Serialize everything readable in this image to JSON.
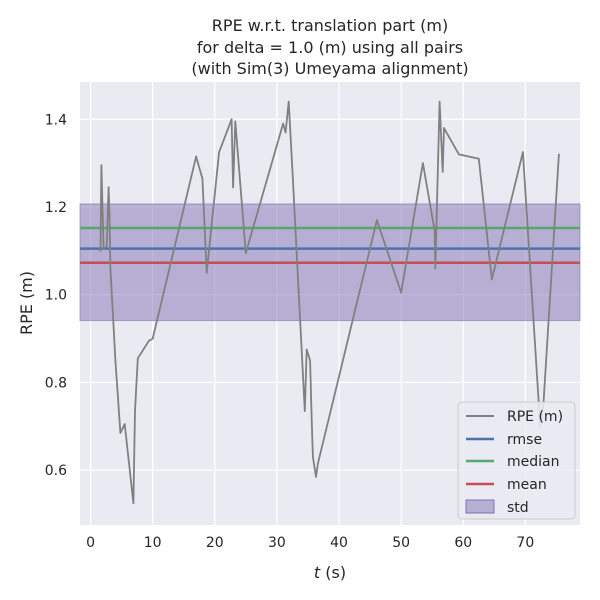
{
  "chart_data": {
    "type": "line",
    "title_lines": [
      "RPE w.r.t. translation part (m)",
      "for delta = 1.0 (m) using all pairs",
      "(with Sim(3) Umeyama alignment)"
    ],
    "xlabel": {
      "italic": "t",
      "rest": " (s)"
    },
    "ylabel": "RPE (m)",
    "xlim": [
      -1.7,
      78.8
    ],
    "ylim": [
      0.475,
      1.485
    ],
    "xticks": [
      0,
      10,
      20,
      30,
      40,
      50,
      60,
      70
    ],
    "yticks": [
      0.6,
      0.8,
      1.0,
      1.2,
      1.4
    ],
    "ytick_labels": [
      "0.6",
      "0.8",
      "1.0",
      "1.2",
      "1.4"
    ],
    "grid": true,
    "legend_position": "lower-right",
    "legend": [
      "RPE (m)",
      "rmse",
      "median",
      "mean",
      "std"
    ],
    "series": {
      "name": "RPE (m)",
      "color": "#808080",
      "x": [
        1.6,
        1.75,
        2.1,
        2.6,
        2.9,
        3.05,
        3.2,
        4.0,
        4.8,
        5.5,
        6.9,
        7.15,
        7.6,
        9.4,
        10.0,
        17.0,
        18.0,
        18.7,
        20.7,
        22.7,
        22.95,
        23.3,
        25.0,
        31.0,
        31.4,
        31.9,
        32.5,
        34.5,
        34.8,
        35.35,
        35.6,
        35.8,
        36.3,
        36.6,
        46.1,
        50.0,
        53.5,
        55.4,
        55.5,
        56.2,
        56.7,
        56.9,
        59.3,
        62.5,
        64.6,
        69.6,
        72.4,
        72.9,
        75.4
      ],
      "y": [
        1.1,
        1.295,
        1.105,
        1.11,
        1.245,
        1.18,
        1.06,
        0.85,
        0.685,
        0.705,
        0.525,
        0.735,
        0.855,
        0.895,
        0.9,
        1.315,
        1.265,
        1.05,
        1.325,
        1.4,
        1.245,
        1.395,
        1.095,
        1.39,
        1.37,
        1.44,
        1.285,
        0.735,
        0.875,
        0.85,
        0.715,
        0.63,
        0.585,
        0.615,
        1.17,
        1.005,
        1.3,
        1.145,
        1.06,
        1.44,
        1.28,
        1.38,
        1.32,
        1.31,
        1.035,
        1.325,
        0.7,
        0.75,
        1.32
      ]
    },
    "stats": {
      "rmse": {
        "value": 1.105,
        "color": "#4c72b0"
      },
      "median": {
        "value": 1.152,
        "color": "#55a868"
      },
      "mean": {
        "value": 1.073,
        "color": "#c44e52"
      },
      "std": {
        "low": 0.941,
        "high": 1.207,
        "color": "#8172b3"
      }
    },
    "colors": {
      "plot_background": "#eaeaf2",
      "grid": "#ffffff"
    }
  }
}
